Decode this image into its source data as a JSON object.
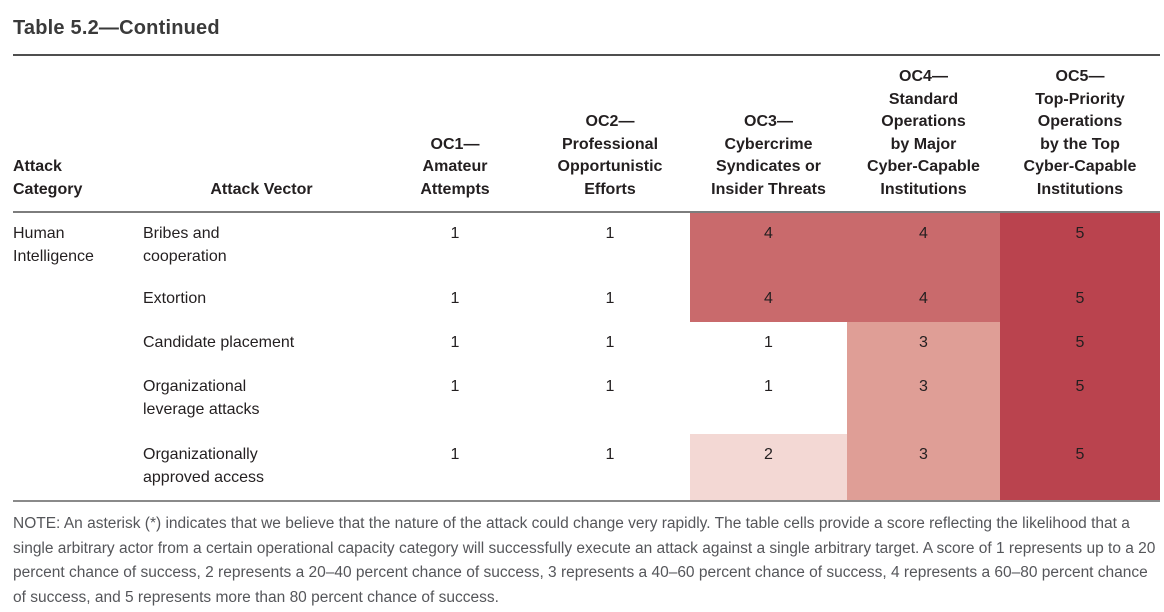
{
  "title": "Table 5.2—Continued",
  "columns": [
    {
      "id": "attack_category",
      "label": "Attack\nCategory"
    },
    {
      "id": "attack_vector",
      "label": "Attack Vector"
    },
    {
      "id": "oc1",
      "label": "OC1—\nAmateur\nAttempts"
    },
    {
      "id": "oc2",
      "label": "OC2—\nProfessional\nOpportunistic\nEfforts"
    },
    {
      "id": "oc3",
      "label": "OC3—\nCybercrime\nSyndicates or\nInsider Threats"
    },
    {
      "id": "oc4",
      "label": "OC4—\nStandard\nOperations\nby Major\nCyber-Capable\nInstitutions"
    },
    {
      "id": "oc5",
      "label": "OC5—\nTop-Priority\nOperations\nby the Top\nCyber-Capable\nInstitutions"
    }
  ],
  "category": "Human\nIntelligence",
  "rows": [
    {
      "vector": "Bribes and\ncooperation",
      "scores": [
        1,
        1,
        4,
        4,
        5
      ]
    },
    {
      "vector": "Extortion",
      "scores": [
        1,
        1,
        4,
        4,
        5
      ]
    },
    {
      "vector": "Candidate placement",
      "scores": [
        1,
        1,
        1,
        3,
        5
      ]
    },
    {
      "vector": "Organizational\nleverage attacks",
      "scores": [
        1,
        1,
        1,
        3,
        5
      ]
    },
    {
      "vector": "Organizationally\napproved access",
      "scores": [
        1,
        1,
        2,
        3,
        5
      ]
    }
  ],
  "score_colors": {
    "1": "#ffffff",
    "2": "#f3d8d4",
    "3": "#df9e96",
    "4": "#c96a6c",
    "5": "#ba434e"
  },
  "note": "NOTE: An asterisk (*) indicates that we believe that the nature of the attack could change very rapidly. The table cells provide a score reflecting the likelihood that a single arbitrary actor from a certain operational capacity category will successfully execute an attack against a single arbitrary target. A score of 1 represents up to a 20 percent chance of success, 2 represents a 20–40 percent chance of success, 3 represents a 40–60 percent chance of success, 4 represents a 60–80 percent chance of success, and 5 represents more than 80 percent chance of success."
}
